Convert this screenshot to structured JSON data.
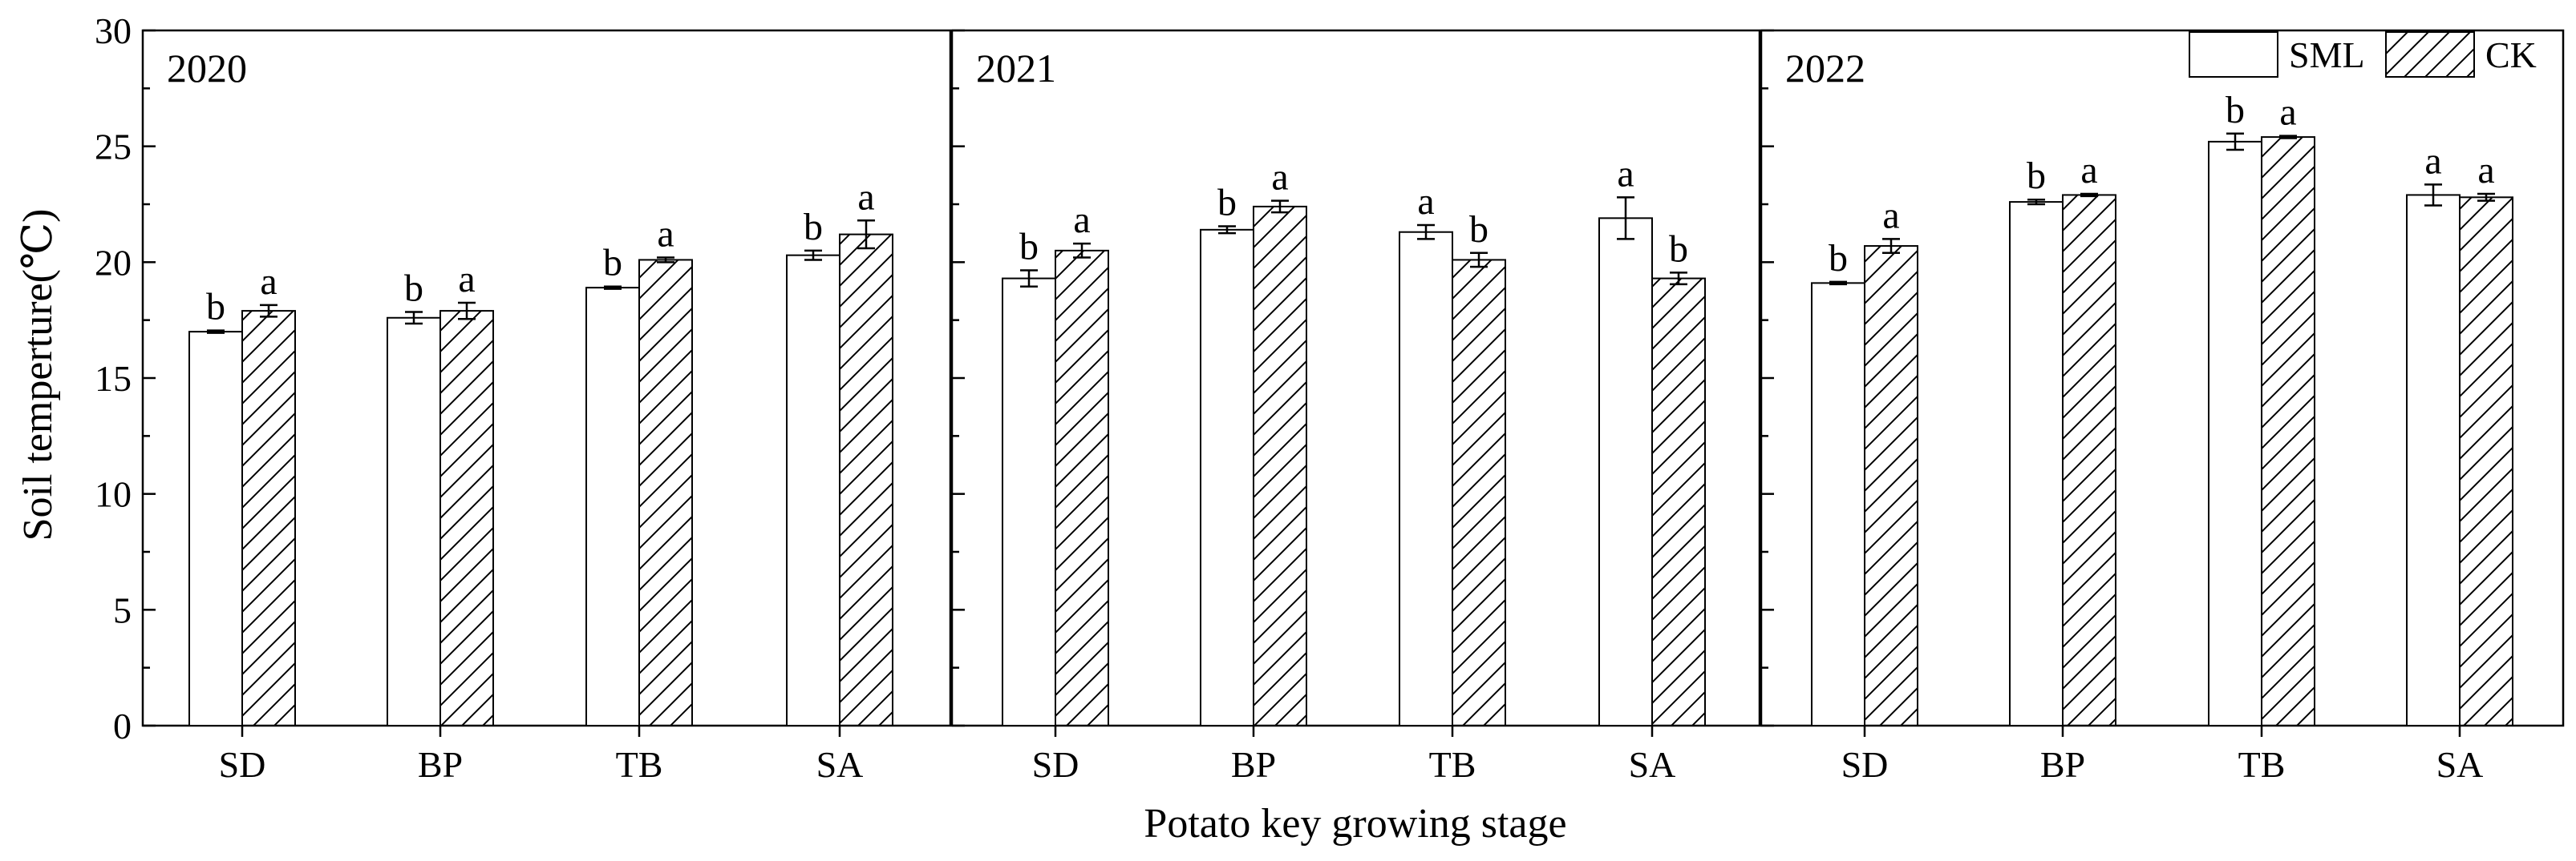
{
  "chart_data": {
    "type": "bar",
    "ylabel": "Soil temperture(℃)",
    "xlabel": "Potato key growing stage",
    "ylim": [
      0,
      30
    ],
    "yticks": [
      0,
      5,
      10,
      15,
      20,
      25,
      30
    ],
    "categories": [
      "SD",
      "BP",
      "TB",
      "SA"
    ],
    "legend": {
      "position": "top-right",
      "entries": [
        {
          "name": "SML",
          "pattern": "open"
        },
        {
          "name": "CK",
          "pattern": "hatched"
        }
      ]
    },
    "panels": [
      {
        "title": "2020",
        "series": [
          {
            "name": "SML",
            "values": [
              17.0,
              17.6,
              18.9,
              20.3
            ],
            "errors": [
              0.05,
              0.25,
              0.05,
              0.2
            ],
            "letters": [
              "b",
              "b",
              "b",
              "b"
            ]
          },
          {
            "name": "CK",
            "values": [
              17.9,
              17.9,
              20.1,
              21.2
            ],
            "errors": [
              0.25,
              0.35,
              0.1,
              0.6
            ],
            "letters": [
              "a",
              "a",
              "a",
              "a"
            ]
          }
        ]
      },
      {
        "title": "2021",
        "series": [
          {
            "name": "SML",
            "values": [
              19.3,
              21.4,
              21.3,
              21.9
            ],
            "errors": [
              0.35,
              0.15,
              0.3,
              0.9
            ],
            "letters": [
              "b",
              "b",
              "a",
              "a"
            ]
          },
          {
            "name": "CK",
            "values": [
              20.5,
              22.4,
              20.1,
              19.3
            ],
            "errors": [
              0.3,
              0.25,
              0.3,
              0.25
            ],
            "letters": [
              "a",
              "a",
              "b",
              "b"
            ]
          }
        ]
      },
      {
        "title": "2022",
        "series": [
          {
            "name": "SML",
            "values": [
              19.1,
              22.6,
              25.2,
              22.9
            ],
            "errors": [
              0.05,
              0.1,
              0.35,
              0.45
            ],
            "letters": [
              "b",
              "b",
              "b",
              "a"
            ]
          },
          {
            "name": "CK",
            "values": [
              20.7,
              22.9,
              25.4,
              22.8
            ],
            "errors": [
              0.3,
              0.05,
              0.05,
              0.15
            ],
            "letters": [
              "a",
              "a",
              "a",
              "a"
            ]
          }
        ]
      }
    ]
  }
}
